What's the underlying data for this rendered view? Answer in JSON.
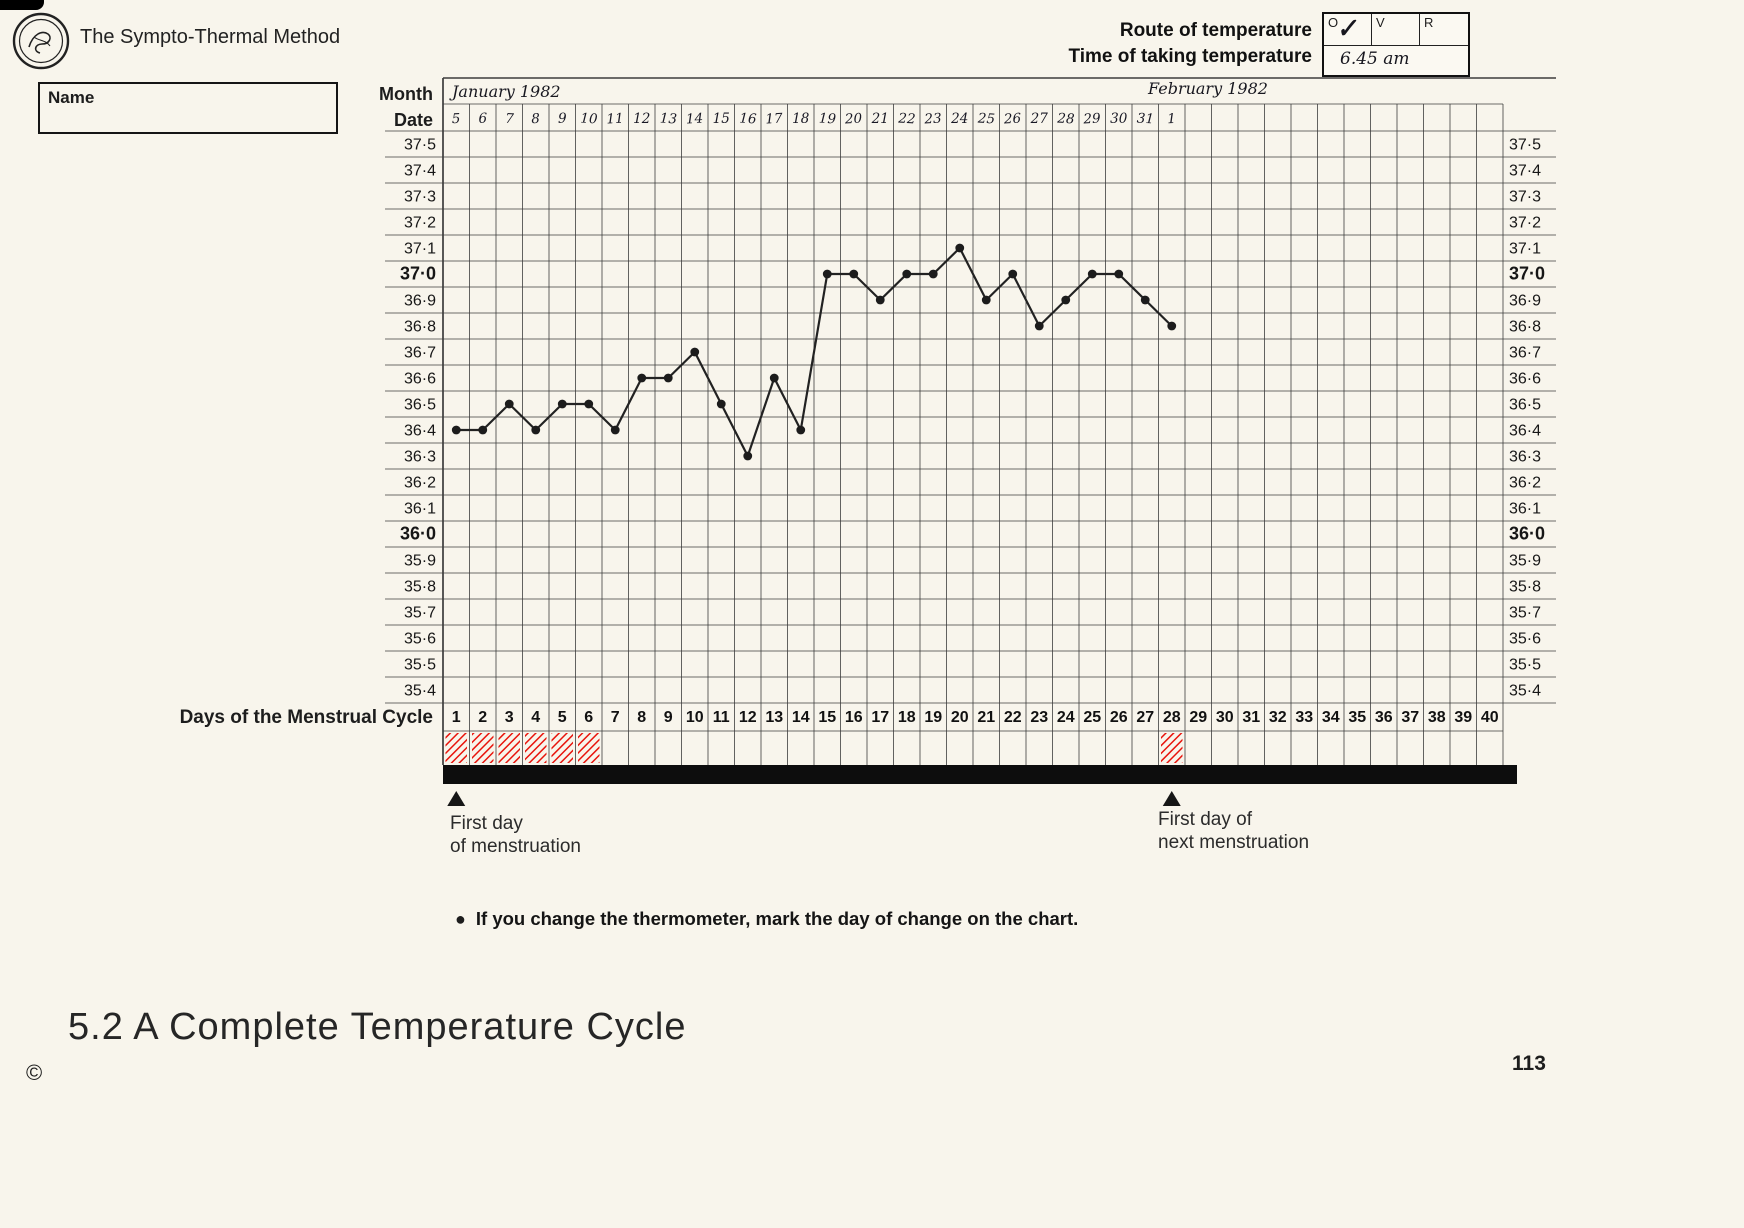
{
  "page": {
    "title": "The Sympto-Thermal Method",
    "section_heading": "5.2 A Complete Temperature Cycle",
    "copyright_glyph": "©",
    "page_number": "113",
    "note_bullet": "●",
    "note": "If you change the thermometer, mark the day of change on the chart."
  },
  "header": {
    "route_label": "Route of temperature",
    "time_label": "Time of taking temperature",
    "route_options": [
      "O",
      "V",
      "R"
    ],
    "checked_option": "O",
    "check_glyph": "✓",
    "time_value": "6.45 am",
    "name_label": "Name",
    "name_value": ""
  },
  "chart_labels": {
    "month_label": "Month",
    "date_label": "Date",
    "month_january": "January 1982",
    "month_february": "February 1982",
    "days_axis_label": "Days of the Menstrual Cycle",
    "first_day_line1": "First day",
    "first_day_line2": "of menstruation",
    "next_day_line1": "First day of",
    "next_day_line2": "next menstruation"
  },
  "chart_data": {
    "type": "line",
    "x_axis": "Days of the Menstrual Cycle",
    "cycle_day_numbers": [
      1,
      2,
      3,
      4,
      5,
      6,
      7,
      8,
      9,
      10,
      11,
      12,
      13,
      14,
      15,
      16,
      17,
      18,
      19,
      20,
      21,
      22,
      23,
      24,
      25,
      26,
      27,
      28,
      29,
      30,
      31,
      32,
      33,
      34,
      35,
      36,
      37,
      38,
      39,
      40
    ],
    "dates": [
      "5",
      "6",
      "7",
      "8",
      "9",
      "10",
      "11",
      "12",
      "13",
      "14",
      "15",
      "16",
      "17",
      "18",
      "19",
      "20",
      "21",
      "22",
      "23",
      "24",
      "25",
      "26",
      "27",
      "28",
      "29",
      "30",
      "31",
      "1"
    ],
    "days": [
      1,
      2,
      3,
      4,
      5,
      6,
      7,
      8,
      9,
      10,
      11,
      12,
      13,
      14,
      15,
      16,
      17,
      18,
      19,
      20,
      21,
      22,
      23,
      24,
      25,
      26,
      27,
      28
    ],
    "temperatures_c": [
      36.4,
      36.4,
      36.5,
      36.4,
      36.5,
      36.5,
      36.4,
      36.6,
      36.6,
      36.7,
      36.5,
      36.3,
      36.6,
      36.4,
      37.0,
      37.0,
      36.9,
      37.0,
      37.0,
      37.1,
      36.9,
      37.0,
      36.8,
      36.9,
      37.0,
      37.0,
      36.9,
      36.8
    ],
    "ylim": [
      35.4,
      37.5
    ],
    "ytick_step": 0.1,
    "yticks": [
      {
        "label": "37·5",
        "value": 37.5,
        "bold": false
      },
      {
        "label": "37·4",
        "value": 37.4,
        "bold": false
      },
      {
        "label": "37·3",
        "value": 37.3,
        "bold": false
      },
      {
        "label": "37·2",
        "value": 37.2,
        "bold": false
      },
      {
        "label": "37·1",
        "value": 37.1,
        "bold": false
      },
      {
        "label": "37·0",
        "value": 37.0,
        "bold": true
      },
      {
        "label": "36·9",
        "value": 36.9,
        "bold": false
      },
      {
        "label": "36·8",
        "value": 36.8,
        "bold": false
      },
      {
        "label": "36·7",
        "value": 36.7,
        "bold": false
      },
      {
        "label": "36·6",
        "value": 36.6,
        "bold": false
      },
      {
        "label": "36·5",
        "value": 36.5,
        "bold": false
      },
      {
        "label": "36·4",
        "value": 36.4,
        "bold": false
      },
      {
        "label": "36·3",
        "value": 36.3,
        "bold": false
      },
      {
        "label": "36·2",
        "value": 36.2,
        "bold": false
      },
      {
        "label": "36·1",
        "value": 36.1,
        "bold": false
      },
      {
        "label": "36·0",
        "value": 36.0,
        "bold": true
      },
      {
        "label": "35·9",
        "value": 35.9,
        "bold": false
      },
      {
        "label": "35·8",
        "value": 35.8,
        "bold": false
      },
      {
        "label": "35·7",
        "value": 35.7,
        "bold": false
      },
      {
        "label": "35·6",
        "value": 35.6,
        "bold": false
      },
      {
        "label": "35·5",
        "value": 35.5,
        "bold": false
      },
      {
        "label": "35·4",
        "value": 35.4,
        "bold": false
      }
    ],
    "menstruation_days": [
      1,
      2,
      3,
      4,
      5,
      6
    ],
    "next_menstruation_days": [
      28
    ],
    "grid": true,
    "legend": false,
    "colors": {
      "line": "#222222",
      "menses_red": "#e8140c",
      "ink": "#1d1d1d"
    }
  }
}
